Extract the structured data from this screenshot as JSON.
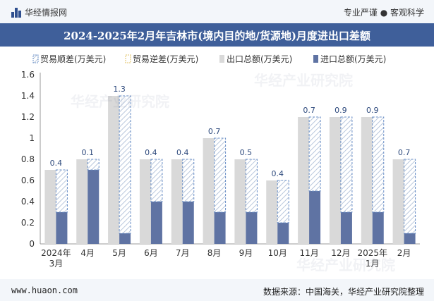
{
  "header": {
    "logo_text": "华经情报网",
    "tagline": "专业严谨 ● 客观科学"
  },
  "footer": {
    "website": "www.huaon.com",
    "source": "数据来源：中国海关，华经产业研究院整理"
  },
  "watermarks": [
    "华经产业研究院",
    "华经产业研究院",
    "华经产业研究院"
  ],
  "colors": {
    "title_bg": "#3f5f9a",
    "export_bar": "#d9d9d9",
    "import_bar": "#5f73a3",
    "surplus_stroke": "#6a8fc7",
    "label": "#2e4a7d"
  },
  "chart_data": {
    "type": "bar",
    "title": "2024-2025年2月年吉林市(境内目的地/货源地)月度进出口差额",
    "categories": [
      "2024年\n3月",
      "4月",
      "5月",
      "6月",
      "7月",
      "8月",
      "9月",
      "10月",
      "11月",
      "12月",
      "2025年\n1月",
      "2月"
    ],
    "series": [
      {
        "name": "贸易顺差(万美元)",
        "values": [
          0.4,
          0.1,
          1.3,
          0.4,
          0.4,
          0.7,
          0.5,
          0.4,
          0.7,
          0.9,
          0.9,
          0.7
        ]
      },
      {
        "name": "贸易逆差(万美元)",
        "values": [
          0,
          0,
          0,
          0,
          0,
          0,
          0,
          0,
          0,
          0,
          0,
          0
        ]
      },
      {
        "name": "出口总额(万美元)",
        "values": [
          0.7,
          0.8,
          1.4,
          0.8,
          0.8,
          1.0,
          0.8,
          0.6,
          1.2,
          1.2,
          1.2,
          0.8
        ]
      },
      {
        "name": "进口总额(万美元)",
        "values": [
          0.3,
          0.7,
          0.1,
          0.4,
          0.4,
          0.3,
          0.3,
          0.2,
          0.5,
          0.3,
          0.3,
          0.1
        ]
      }
    ],
    "data_labels": [
      "0.4",
      "0.1",
      "1.3",
      "0.4",
      "0.4",
      "0.7",
      "0.5",
      "0.4",
      "0.7",
      "0.9",
      "0.9",
      "0.7"
    ],
    "ylim": [
      0,
      1.6
    ],
    "yticks": [
      "0",
      "0.2",
      "0.4",
      "0.6",
      "0.8",
      "1",
      "1.2",
      "1.4",
      "1.6"
    ],
    "legend_position": "top",
    "grid": false
  }
}
